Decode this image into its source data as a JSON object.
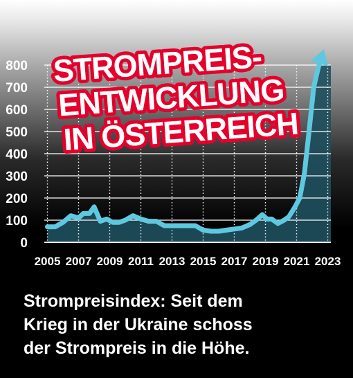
{
  "chart_data": {
    "type": "area",
    "title_lines": [
      "STROMPREIS-",
      "ENTWICKLUNG",
      "IN ÖSTERREICH"
    ],
    "xlabel": "",
    "ylabel": "",
    "ylim": [
      0,
      800
    ],
    "yticks": [
      0,
      100,
      200,
      300,
      400,
      500,
      600,
      700,
      800
    ],
    "xticks": [
      2005,
      2007,
      2009,
      2011,
      2013,
      2015,
      2017,
      2019,
      2021,
      2023
    ],
    "xlim": [
      2004.8,
      2023.2
    ],
    "grid": true,
    "line_color": "#5ec8e0",
    "fill_color": "#1f4f5e",
    "title_color": "#e4002b",
    "x": [
      2005,
      2005.5,
      2006,
      2006.5,
      2007,
      2007.3,
      2007.7,
      2008,
      2008.4,
      2008.8,
      2009.2,
      2009.6,
      2010,
      2010.5,
      2011,
      2011.5,
      2012,
      2012.5,
      2013,
      2013.5,
      2014,
      2014.5,
      2015,
      2015.5,
      2016,
      2016.5,
      2017,
      2017.5,
      2018,
      2018.4,
      2018.8,
      2019.1,
      2019.4,
      2019.8,
      2020.2,
      2020.5,
      2020.9,
      2021.2,
      2021.5,
      2021.8,
      2022.1,
      2022.4,
      2022.7
    ],
    "values": [
      70,
      70,
      90,
      120,
      110,
      130,
      130,
      160,
      95,
      105,
      90,
      90,
      100,
      120,
      105,
      95,
      95,
      75,
      75,
      75,
      75,
      75,
      55,
      50,
      50,
      55,
      60,
      65,
      80,
      100,
      125,
      105,
      105,
      85,
      100,
      115,
      160,
      200,
      310,
      500,
      700,
      790,
      860
    ]
  },
  "caption": {
    "line1": "Strompreisindex: Seit dem",
    "line2": "Krieg in der Ukraine schoss",
    "line3": "der Strompreis in die Höhe."
  }
}
